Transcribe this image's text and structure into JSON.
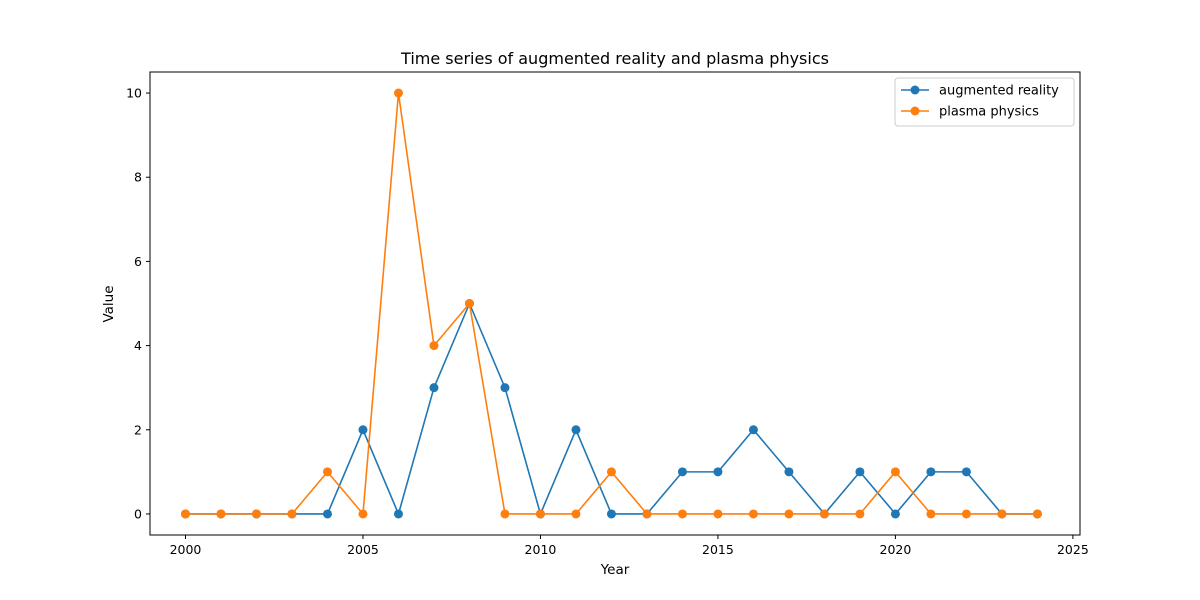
{
  "chart_data": {
    "type": "line",
    "title": "Time series of augmented reality and plasma physics",
    "xlabel": "Year",
    "ylabel": "Value",
    "x": [
      2000,
      2001,
      2002,
      2003,
      2004,
      2005,
      2006,
      2007,
      2008,
      2009,
      2010,
      2011,
      2012,
      2013,
      2014,
      2015,
      2016,
      2017,
      2018,
      2019,
      2020,
      2021,
      2022,
      2023,
      2024
    ],
    "series": [
      {
        "name": "augmented reality",
        "color": "#1f77b4",
        "values": [
          0,
          0,
          0,
          0,
          0,
          2,
          0,
          3,
          5,
          3,
          0,
          2,
          0,
          0,
          1,
          1,
          2,
          1,
          0,
          1,
          0,
          1,
          1,
          0,
          0
        ]
      },
      {
        "name": "plasma physics",
        "color": "#ff7f0e",
        "values": [
          0,
          0,
          0,
          0,
          1,
          0,
          10,
          4,
          5,
          0,
          0,
          0,
          1,
          0,
          0,
          0,
          0,
          0,
          0,
          0,
          1,
          0,
          0,
          0,
          0
        ]
      }
    ],
    "xlim": [
      1999,
      2025.2
    ],
    "ylim": [
      -0.5,
      10.5
    ],
    "xticks": [
      2000,
      2005,
      2010,
      2015,
      2020,
      2025
    ],
    "xtick_labels": [
      "2000",
      "2005",
      "2010",
      "2015",
      "2020",
      "2025"
    ],
    "yticks": [
      0,
      2,
      4,
      6,
      8,
      10
    ],
    "ytick_labels": [
      "0",
      "2",
      "4",
      "6",
      "8",
      "10"
    ],
    "grid": false,
    "legend_position": "top-right"
  }
}
